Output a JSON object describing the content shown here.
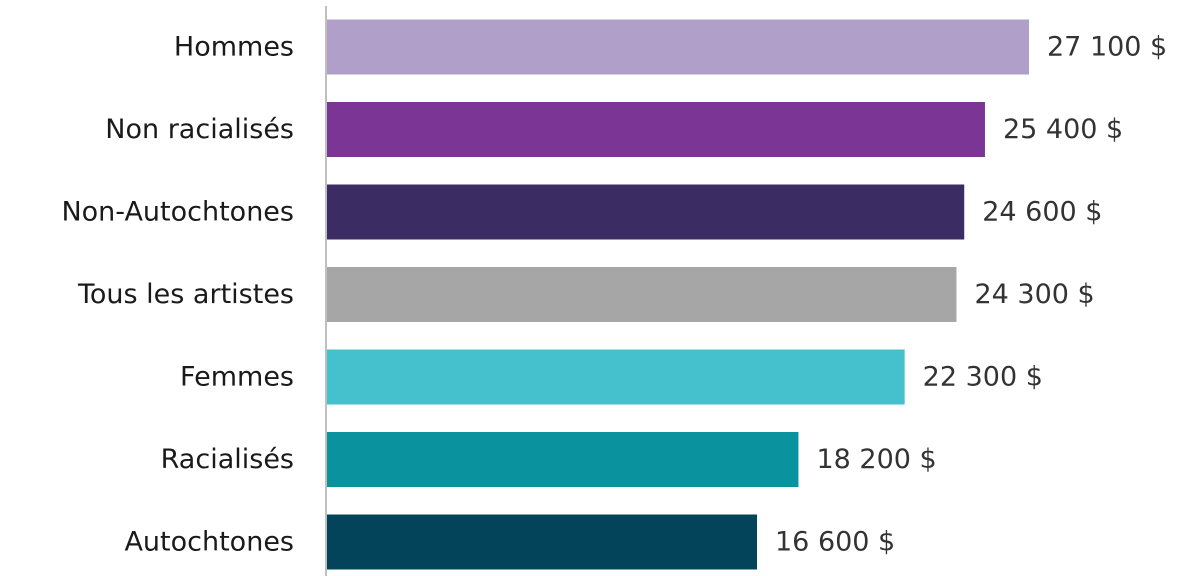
{
  "chart_data": {
    "type": "bar",
    "orientation": "horizontal",
    "categories": [
      "Hommes",
      "Non racialisés",
      "Non-Autochtones",
      "Tous les artistes",
      "Femmes",
      "Racialisés",
      "Autochtones"
    ],
    "values": [
      27100,
      25400,
      24600,
      24300,
      22300,
      18200,
      16600
    ],
    "value_labels": [
      "27 100 $",
      "25 400 $",
      "24 600 $",
      "24 300 $",
      "22 300 $",
      "18 200 $",
      "16 600 $"
    ],
    "colors": [
      "#b09fc9",
      "#7b3594",
      "#3b2c63",
      "#a6a6a6",
      "#45c1cd",
      "#0b929f",
      "#03445a"
    ],
    "xlim": [
      0,
      28000
    ],
    "grid": false,
    "legend": "none"
  }
}
